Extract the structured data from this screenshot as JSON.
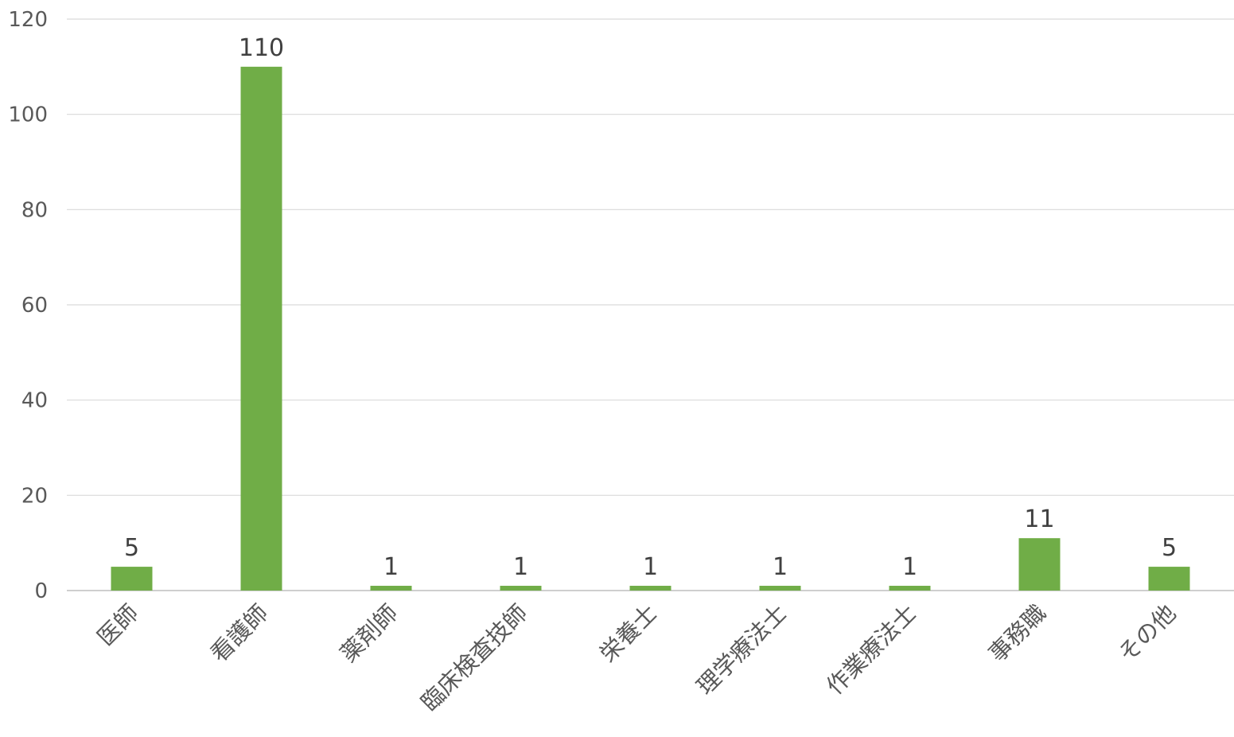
{
  "chart_data": {
    "type": "bar",
    "categories": [
      "医師",
      "看護師",
      "薬剤師",
      "臨床検査技師",
      "栄養士",
      "理学療法士",
      "作業療法士",
      "事務職",
      "その他"
    ],
    "values": [
      5,
      110,
      1,
      1,
      1,
      1,
      1,
      11,
      5
    ],
    "data_labels": [
      "5",
      "110",
      "1",
      "1",
      "1",
      "1",
      "1",
      "11",
      "5"
    ],
    "ylim": [
      0,
      120
    ],
    "y_ticks": [
      "0",
      "20",
      "40",
      "60",
      "80",
      "100",
      "120"
    ],
    "y_tick_values": [
      0,
      20,
      40,
      60,
      80,
      100,
      120
    ],
    "grid": true,
    "legend": "none",
    "bar_color": "#70ad47",
    "grid_color": "#d9d9d9"
  }
}
